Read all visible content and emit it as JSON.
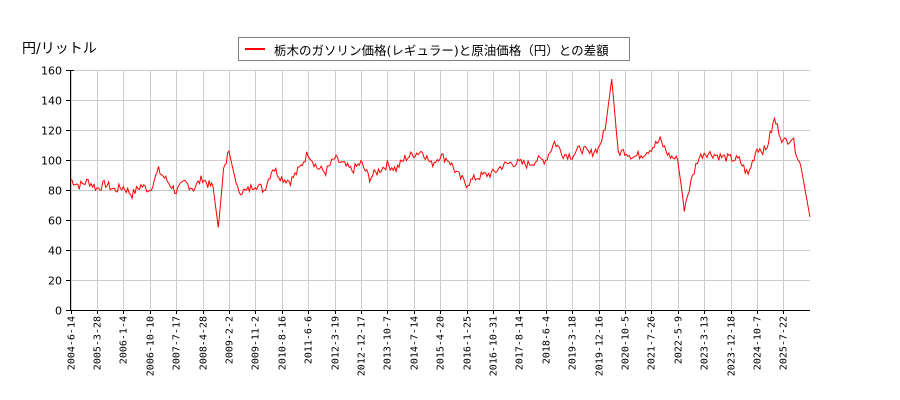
{
  "chart_data": {
    "type": "line",
    "title": "",
    "ylabel": "円/リットル",
    "xlabel": "",
    "ylim": [
      0,
      160
    ],
    "yticks": [
      0,
      20,
      40,
      60,
      80,
      100,
      120,
      140,
      160
    ],
    "grid": true,
    "legend_position": "top-center",
    "x_ticks": [
      "2004-6-14",
      "2005-3-28",
      "2006-1-4",
      "2006-10-10",
      "2007-7-17",
      "2008-4-28",
      "2009-2-2",
      "2009-11-2",
      "2010-8-16",
      "2011-6-6",
      "2012-3-19",
      "2012-12-17",
      "2013-10-7",
      "2014-7-14",
      "2015-4-20",
      "2016-1-25",
      "2016-10-31",
      "2017-8-14",
      "2018-6-4",
      "2019-3-18",
      "2019-12-16",
      "2020-10-5",
      "2021-7-26",
      "2022-5-9",
      "2023-3-13",
      "2023-12-18",
      "2024-10-7",
      "2025-7-22"
    ],
    "series": [
      {
        "name": "栃木のガソリン価格(レギュラー)と原油価格（円）との差額",
        "color": "#ff0000",
        "x": [
          "2004-6-14",
          "2004-9",
          "2004-12",
          "2005-3-28",
          "2005-6",
          "2005-9",
          "2006-1-4",
          "2006-4",
          "2006-7",
          "2006-10-10",
          "2007-1",
          "2007-4",
          "2007-7-17",
          "2007-10",
          "2008-1",
          "2008-4-28",
          "2008-6",
          "2008-8",
          "2008-10",
          "2008-12",
          "2009-2-2",
          "2009-5",
          "2009-8",
          "2009-11-2",
          "2010-2",
          "2010-5",
          "2010-8-16",
          "2010-11",
          "2011-3",
          "2011-6-6",
          "2011-9",
          "2011-12",
          "2012-3-19",
          "2012-6",
          "2012-9",
          "2012-12-17",
          "2013-4",
          "2013-7",
          "2013-10-7",
          "2014-1",
          "2014-4",
          "2014-7-14",
          "2014-10",
          "2015-1",
          "2015-4-20",
          "2015-8",
          "2015-11",
          "2016-1-25",
          "2016-4",
          "2016-7",
          "2016-10-31",
          "2017-2",
          "2017-5",
          "2017-8-14",
          "2017-12",
          "2018-3",
          "2018-6-4",
          "2018-10",
          "2019-1",
          "2019-3-18",
          "2019-7",
          "2019-10",
          "2019-12-16",
          "2020-3",
          "2020-4",
          "2020-6",
          "2020-10-5",
          "2021-1",
          "2021-4",
          "2021-7-26",
          "2021-11",
          "2022-2",
          "2022-5-9",
          "2022-7",
          "2022-10",
          "2023-1",
          "2023-3-13",
          "2023-7",
          "2023-10",
          "2023-12-18",
          "2024-3",
          "2024-7",
          "2024-10-7",
          "2025-1",
          "2025-3",
          "2025-7-22",
          "2025-10",
          "2025-12",
          "2026-2"
        ],
        "values": [
          87,
          83,
          86,
          81,
          84,
          80,
          82,
          77,
          83,
          80,
          93,
          86,
          79,
          85,
          81,
          88,
          84,
          82,
          55,
          94,
          106,
          80,
          79,
          84,
          80,
          95,
          88,
          86,
          94,
          105,
          95,
          92,
          101,
          97,
          93,
          98,
          88,
          93,
          97,
          94,
          101,
          104,
          106,
          97,
          103,
          100,
          90,
          84,
          88,
          90,
          91,
          96,
          98,
          98,
          97,
          100,
          100,
          112,
          104,
          103,
          108,
          104,
          108,
          120,
          154,
          105,
          106,
          102,
          104,
          108,
          113,
          103,
          100,
          68,
          85,
          100,
          105,
          104,
          102,
          101,
          100,
          90,
          108,
          106,
          127,
          112,
          115,
          95,
          62
        ]
      }
    ]
  },
  "header": {
    "unit_label": "円/リットル"
  },
  "legend": {
    "label": "栃木のガソリン価格(レギュラー)と原油価格（円）との差額",
    "color": "#ff0000"
  }
}
